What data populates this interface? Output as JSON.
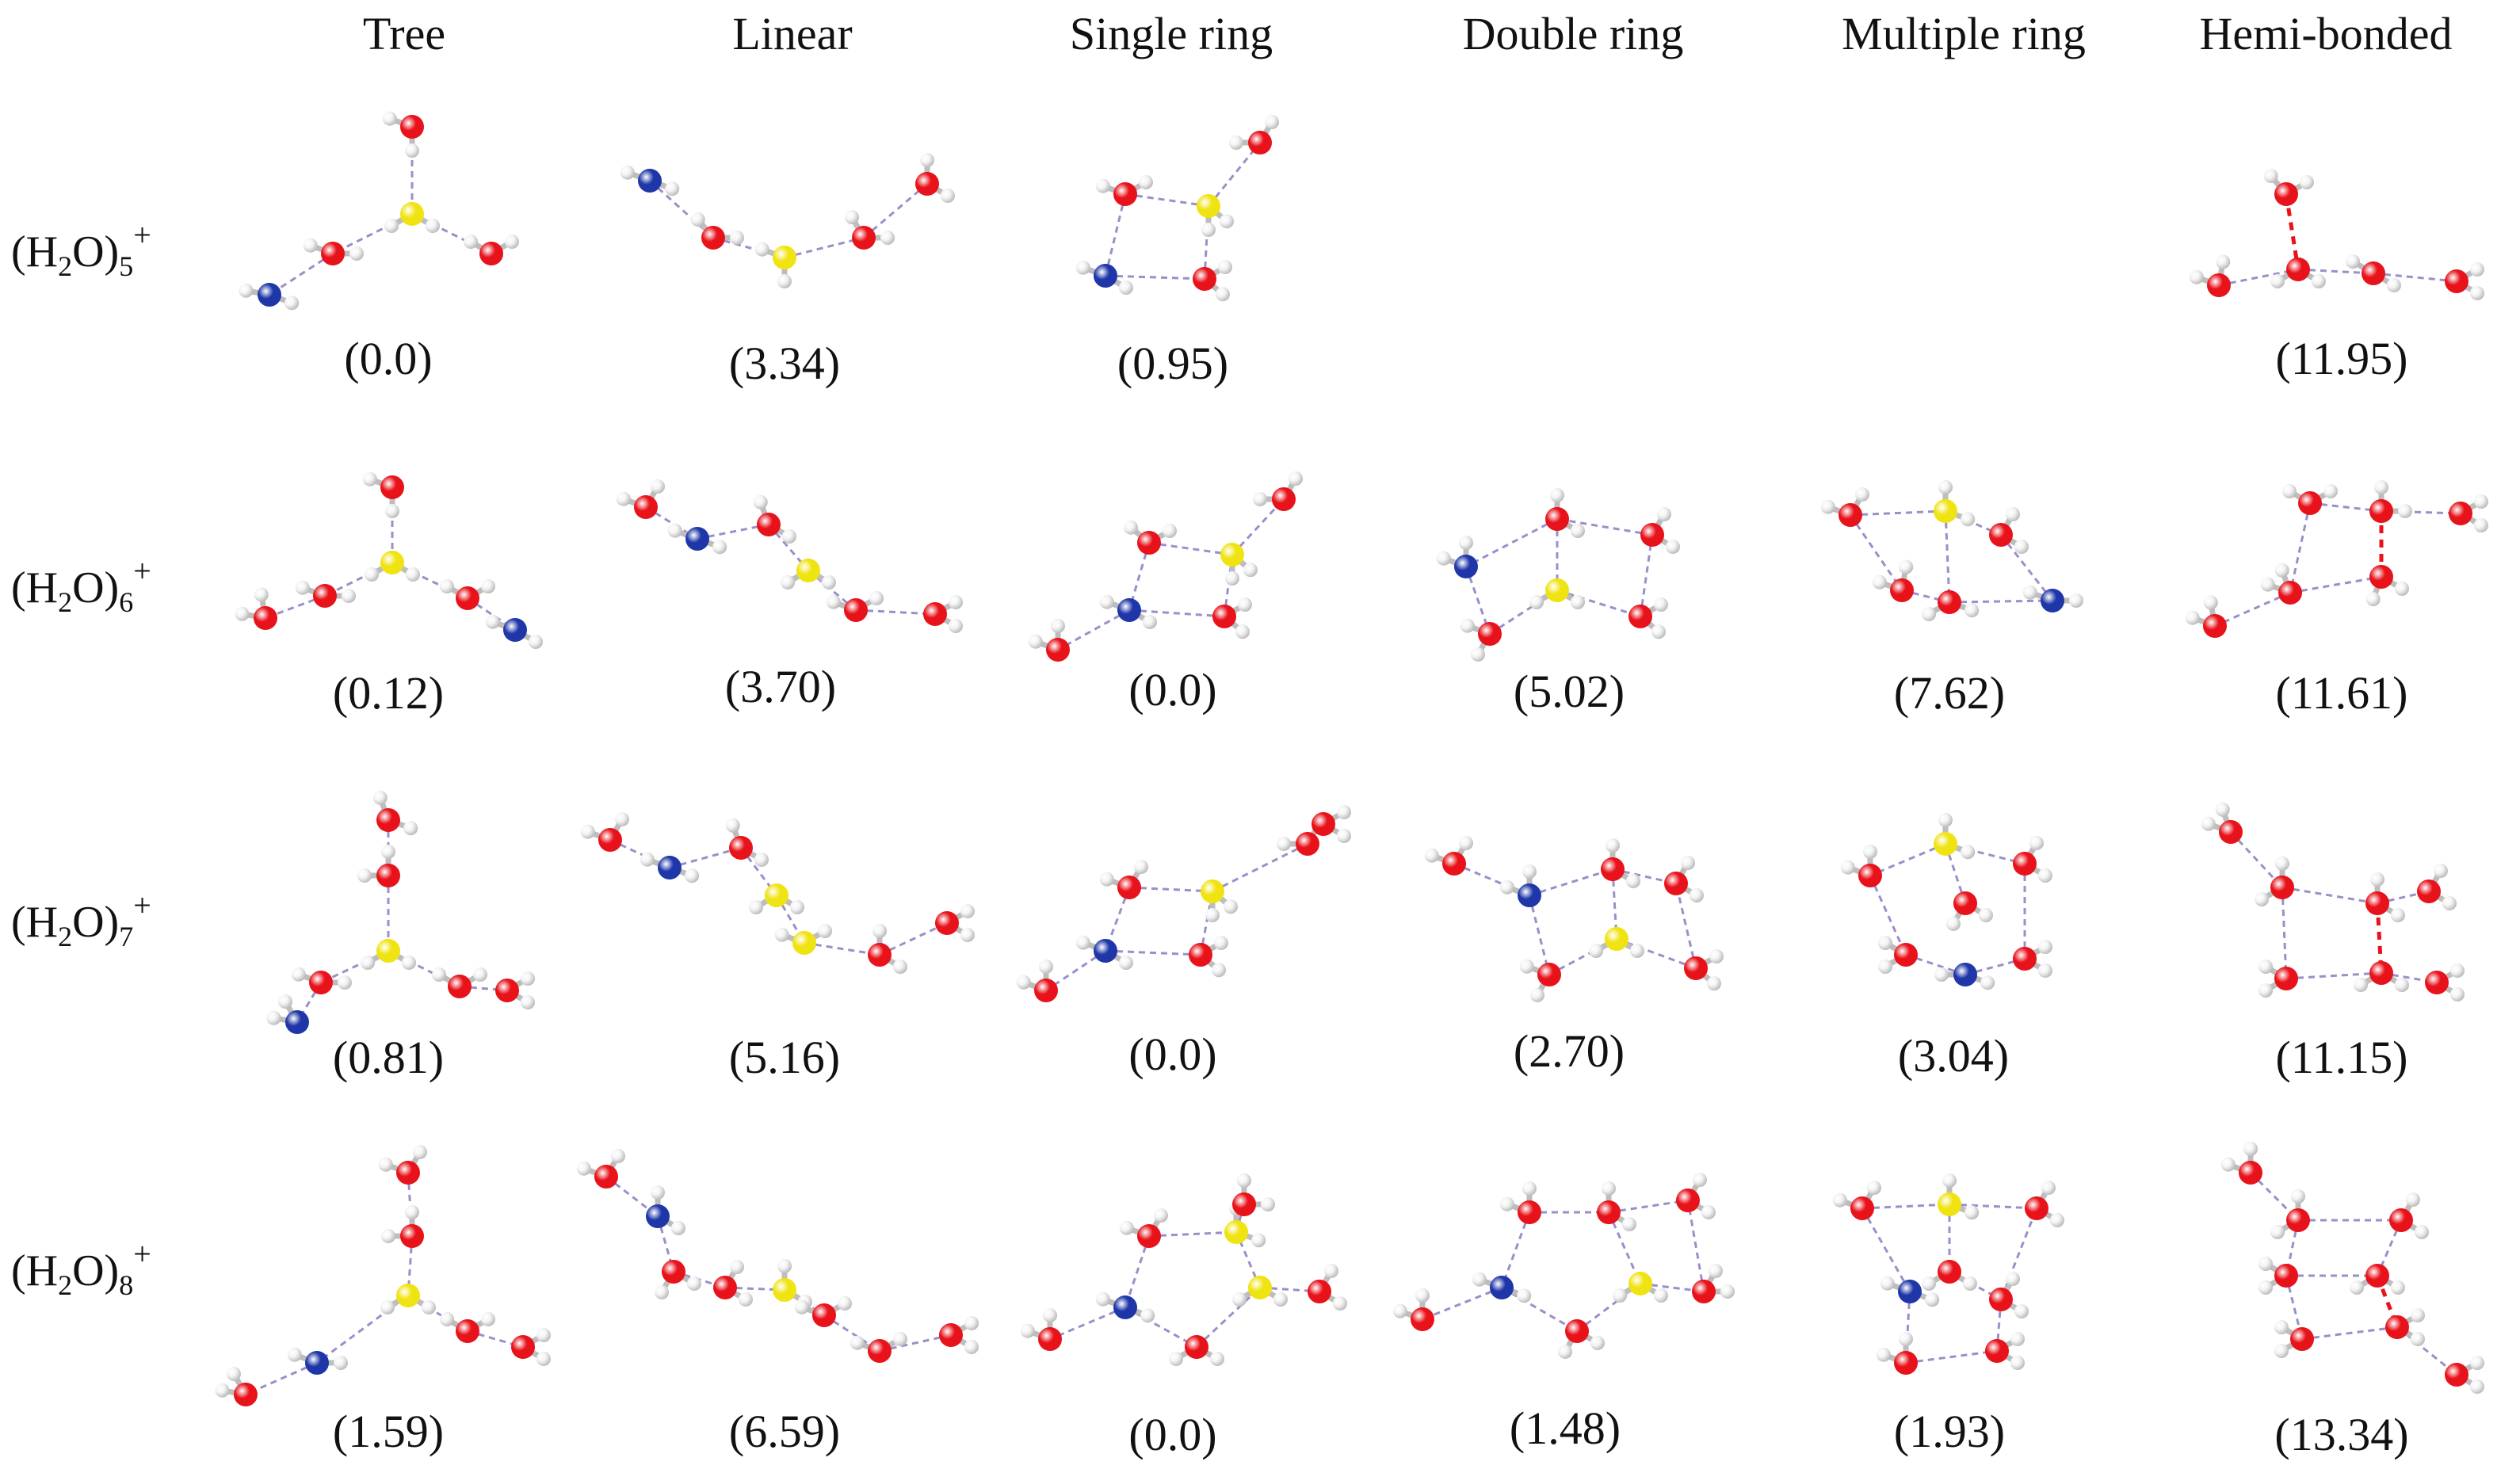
{
  "figure": {
    "columns": [
      "Tree",
      "Linear",
      "Single ring",
      "Double ring",
      "Multiple ring",
      "Hemi-bonded"
    ],
    "rows": [
      {
        "base": "(H",
        "sub1": "2",
        "mid": "O)",
        "sub2": "5",
        "charge": "+",
        "energies": [
          "(0.0)",
          "(3.34)",
          "(0.95)",
          "",
          "",
          "(11.95)"
        ]
      },
      {
        "base": "(H",
        "sub1": "2",
        "mid": "O)",
        "sub2": "6",
        "charge": "+",
        "energies": [
          "(0.12)",
          "(3.70)",
          "(0.0)",
          "(5.02)",
          "(7.62)",
          "(11.61)"
        ]
      },
      {
        "base": "(H",
        "sub1": "2",
        "mid": "O)",
        "sub2": "7",
        "charge": "+",
        "energies": [
          "(0.81)",
          "(5.16)",
          "(0.0)",
          "(2.70)",
          "(3.04)",
          "(11.15)"
        ]
      },
      {
        "base": "(H",
        "sub1": "2",
        "mid": "O)",
        "sub2": "8",
        "charge": "+",
        "energies": [
          "(1.59)",
          "(6.59)",
          "(0.0)",
          "(1.48)",
          "(1.93)",
          "(13.34)"
        ]
      }
    ],
    "atom_colors": {
      "oxygen": "#e8121a",
      "hydrogen": "#f4f4f4",
      "hydronium_oxygen": "#f0e312",
      "radical_oxygen": "#1e36a8",
      "hbond": "#9a8fc9",
      "hemibond": "#e8121a"
    }
  }
}
